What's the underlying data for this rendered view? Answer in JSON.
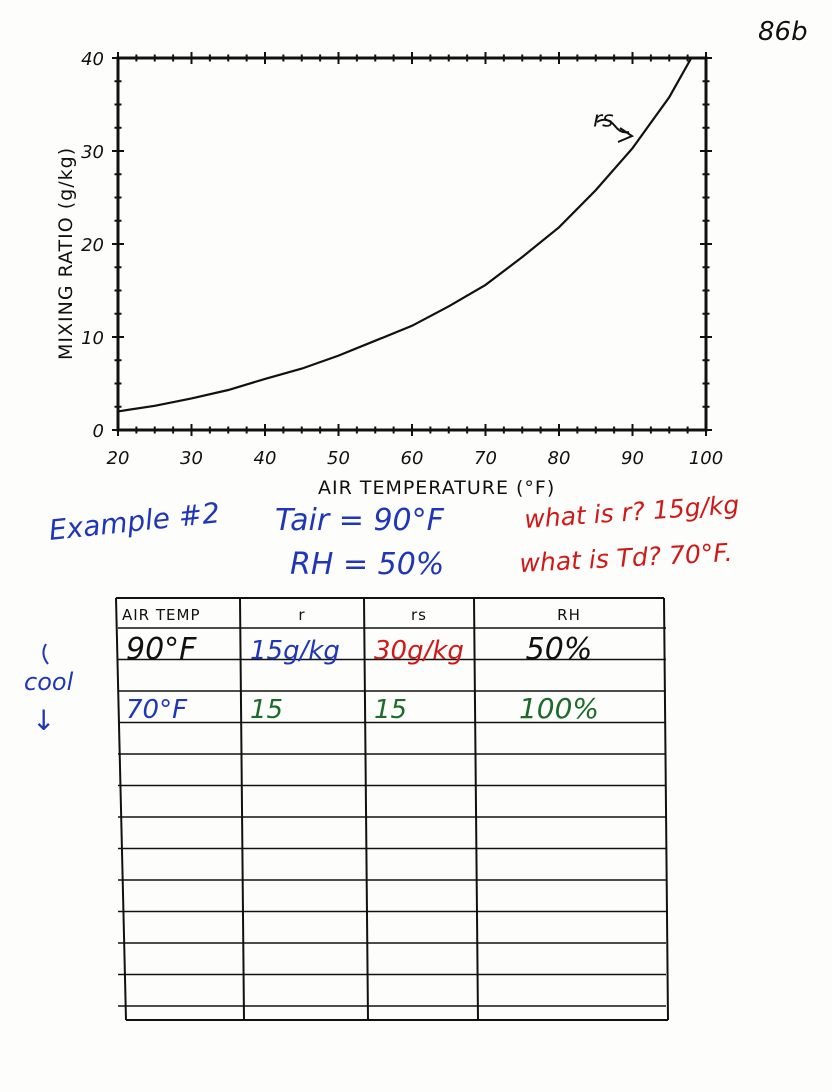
{
  "page_number": "86b",
  "chart_data": {
    "type": "line",
    "title": "",
    "xlabel": "AIR TEMPERATURE (°F)",
    "ylabel": "MIXING RATIO (g/kg)",
    "xlim": [
      20,
      100
    ],
    "ylim": [
      0,
      40
    ],
    "x_ticks": [
      "20",
      "30",
      "40",
      "50",
      "60",
      "70",
      "80",
      "90",
      "100"
    ],
    "y_ticks": [
      "0",
      "10",
      "20",
      "30",
      "40"
    ],
    "grid": false,
    "series": [
      {
        "name": "rs",
        "x": [
          20,
          25,
          30,
          35,
          40,
          45,
          50,
          55,
          60,
          65,
          70,
          75,
          80,
          85,
          90,
          95,
          98
        ],
        "y": [
          2,
          2.6,
          3.4,
          4.3,
          5.5,
          6.6,
          8,
          9.6,
          11.2,
          13.3,
          15.6,
          18.6,
          21.8,
          25.8,
          30.3,
          35.8,
          40
        ]
      }
    ],
    "annotations": [
      {
        "text": "rs",
        "x": 86,
        "y": 33.5
      }
    ]
  },
  "example": {
    "heading": "Example #2",
    "tair": "Tair = 90°F",
    "rh": "RH = 50%",
    "q1": "what is r? 15g/kg",
    "q2": "what is Td? 70°F."
  },
  "cool_label": "cool",
  "cool_arrow": "↓",
  "table": {
    "headers": [
      "AIR TEMP",
      "r",
      "rs",
      "RH"
    ],
    "rows": [
      [
        "90°F",
        "15g/kg",
        "30g/kg",
        "50%"
      ],
      [
        "70°F",
        "15",
        "15",
        "100%"
      ]
    ],
    "empty_rows": 10
  },
  "colors": {
    "ink": "#111111",
    "blue": "#1f36b8",
    "red": "#d01818",
    "green": "#1d6b2a",
    "paper": "#fdfdfb"
  }
}
